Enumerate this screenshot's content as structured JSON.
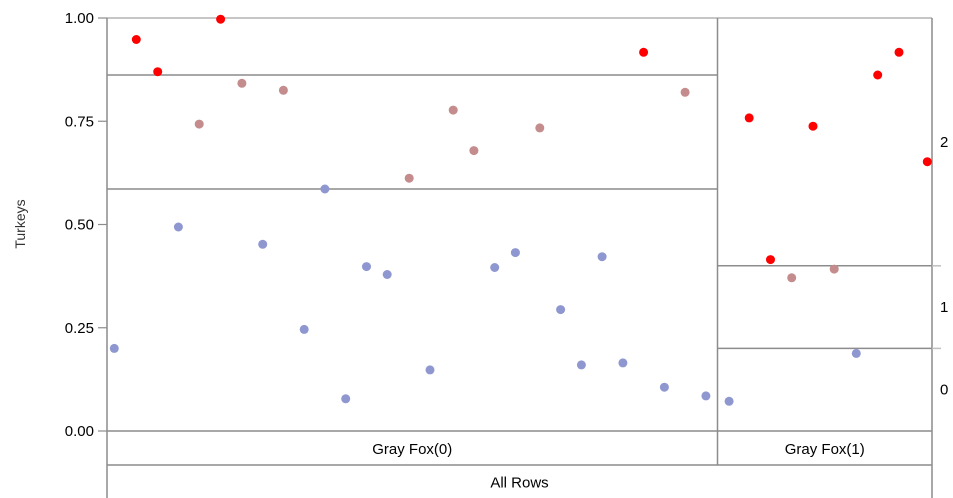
{
  "chart_data": {
    "type": "scatter",
    "title": "",
    "ylabel": "Turkeys",
    "ylim": [
      0,
      1
    ],
    "y_ticks": [
      "0.00",
      "0.25",
      "0.50",
      "0.75",
      "1.00"
    ],
    "right_axis_ticks": [
      "0",
      "1",
      "2"
    ],
    "categories": [
      "Gray Fox(0)",
      "Gray Fox(1)"
    ],
    "all_rows_label": "All Rows",
    "category_widths": [
      0.74,
      0.26
    ],
    "level_splits": [
      {
        "category": "Gray Fox(0)",
        "boundaries": [
          0.586,
          0.862
        ]
      },
      {
        "category": "Gray Fox(1)",
        "boundaries": [
          0.2,
          0.4
        ]
      }
    ],
    "colors": {
      "0": "#8f97d0",
      "1": "#c48c8c",
      "2": "#ff0000"
    },
    "series": [
      {
        "name": "0",
        "points": [
          {
            "cat": 0,
            "jx": 0.012,
            "y": 0.2
          },
          {
            "cat": 0,
            "jx": 0.117,
            "y": 0.494
          },
          {
            "cat": 0,
            "jx": 0.255,
            "y": 0.452
          },
          {
            "cat": 0,
            "jx": 0.323,
            "y": 0.246
          },
          {
            "cat": 0,
            "jx": 0.357,
            "y": 0.586
          },
          {
            "cat": 0,
            "jx": 0.391,
            "y": 0.078
          },
          {
            "cat": 0,
            "jx": 0.425,
            "y": 0.398
          },
          {
            "cat": 0,
            "jx": 0.459,
            "y": 0.379
          },
          {
            "cat": 0,
            "jx": 0.529,
            "y": 0.148
          },
          {
            "cat": 0,
            "jx": 0.635,
            "y": 0.396
          },
          {
            "cat": 0,
            "jx": 0.669,
            "y": 0.432
          },
          {
            "cat": 0,
            "jx": 0.743,
            "y": 0.294
          },
          {
            "cat": 0,
            "jx": 0.777,
            "y": 0.16
          },
          {
            "cat": 0,
            "jx": 0.811,
            "y": 0.422
          },
          {
            "cat": 0,
            "jx": 0.845,
            "y": 0.165
          },
          {
            "cat": 0,
            "jx": 0.913,
            "y": 0.106
          },
          {
            "cat": 0,
            "jx": 0.981,
            "y": 0.085
          },
          {
            "cat": 1,
            "jx": 0.054,
            "y": 0.072
          },
          {
            "cat": 1,
            "jx": 0.647,
            "y": 0.188
          }
        ]
      },
      {
        "name": "1",
        "points": [
          {
            "cat": 0,
            "jx": 0.151,
            "y": 0.743
          },
          {
            "cat": 0,
            "jx": 0.221,
            "y": 0.842
          },
          {
            "cat": 0,
            "jx": 0.289,
            "y": 0.825
          },
          {
            "cat": 0,
            "jx": 0.495,
            "y": 0.612
          },
          {
            "cat": 0,
            "jx": 0.567,
            "y": 0.777
          },
          {
            "cat": 0,
            "jx": 0.601,
            "y": 0.679
          },
          {
            "cat": 0,
            "jx": 0.709,
            "y": 0.734
          },
          {
            "cat": 0,
            "jx": 0.947,
            "y": 0.82
          },
          {
            "cat": 1,
            "jx": 0.346,
            "y": 0.371
          },
          {
            "cat": 1,
            "jx": 0.544,
            "y": 0.392
          }
        ]
      },
      {
        "name": "2",
        "points": [
          {
            "cat": 0,
            "jx": 0.048,
            "y": 0.948
          },
          {
            "cat": 0,
            "jx": 0.083,
            "y": 0.87
          },
          {
            "cat": 0,
            "jx": 0.186,
            "y": 0.997
          },
          {
            "cat": 0,
            "jx": 0.879,
            "y": 0.917
          },
          {
            "cat": 1,
            "jx": 0.148,
            "y": 0.758
          },
          {
            "cat": 1,
            "jx": 0.247,
            "y": 0.415
          },
          {
            "cat": 1,
            "jx": 0.445,
            "y": 0.738
          },
          {
            "cat": 1,
            "jx": 0.747,
            "y": 0.862
          },
          {
            "cat": 1,
            "jx": 0.846,
            "y": 0.917
          },
          {
            "cat": 1,
            "jx": 0.978,
            "y": 0.652
          }
        ]
      }
    ]
  }
}
